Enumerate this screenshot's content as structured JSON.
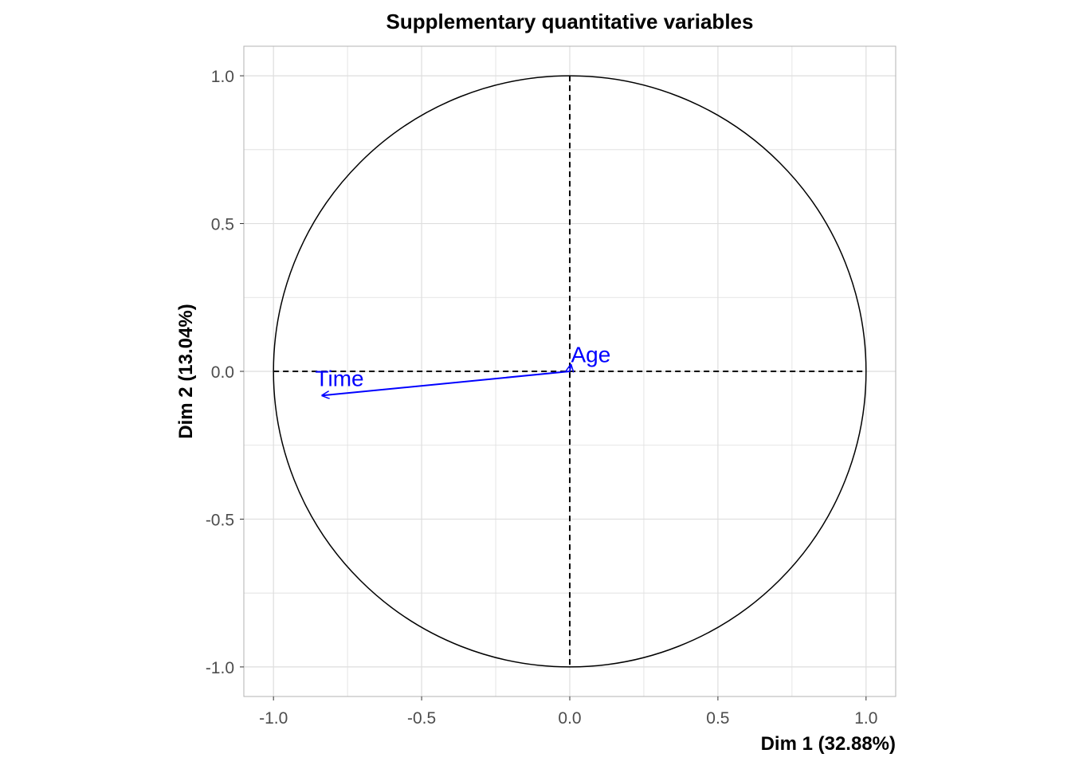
{
  "chart_data": {
    "type": "scatter",
    "subtype": "correlation-circle",
    "title": "Supplementary quantitative variables",
    "xlabel": "Dim 1 (32.88%)",
    "ylabel": "Dim 2 (13.04%)",
    "xlim": [
      -1.1,
      1.1
    ],
    "ylim": [
      -1.1,
      1.1
    ],
    "xticks": [
      -1.0,
      -0.5,
      0.0,
      0.5,
      1.0
    ],
    "yticks": [
      -1.0,
      -0.5,
      0.0,
      0.5,
      1.0
    ],
    "xtick_labels": [
      "-1.0",
      "-0.5",
      "0.0",
      "0.5",
      "1.0"
    ],
    "ytick_labels": [
      "-1.0",
      "-0.5",
      "0.0",
      "0.5",
      "1.0"
    ],
    "grid": true,
    "unit_circle": true,
    "variables": [
      {
        "name": "Time",
        "x": -0.838,
        "y": -0.082
      },
      {
        "name": "Age",
        "x": 0.004,
        "y": 0.025
      }
    ],
    "colors": {
      "arrow": "#0000FF",
      "circle": "#000000",
      "grid": "#DEDEDE",
      "panel_border": "#B3B3B3"
    }
  }
}
